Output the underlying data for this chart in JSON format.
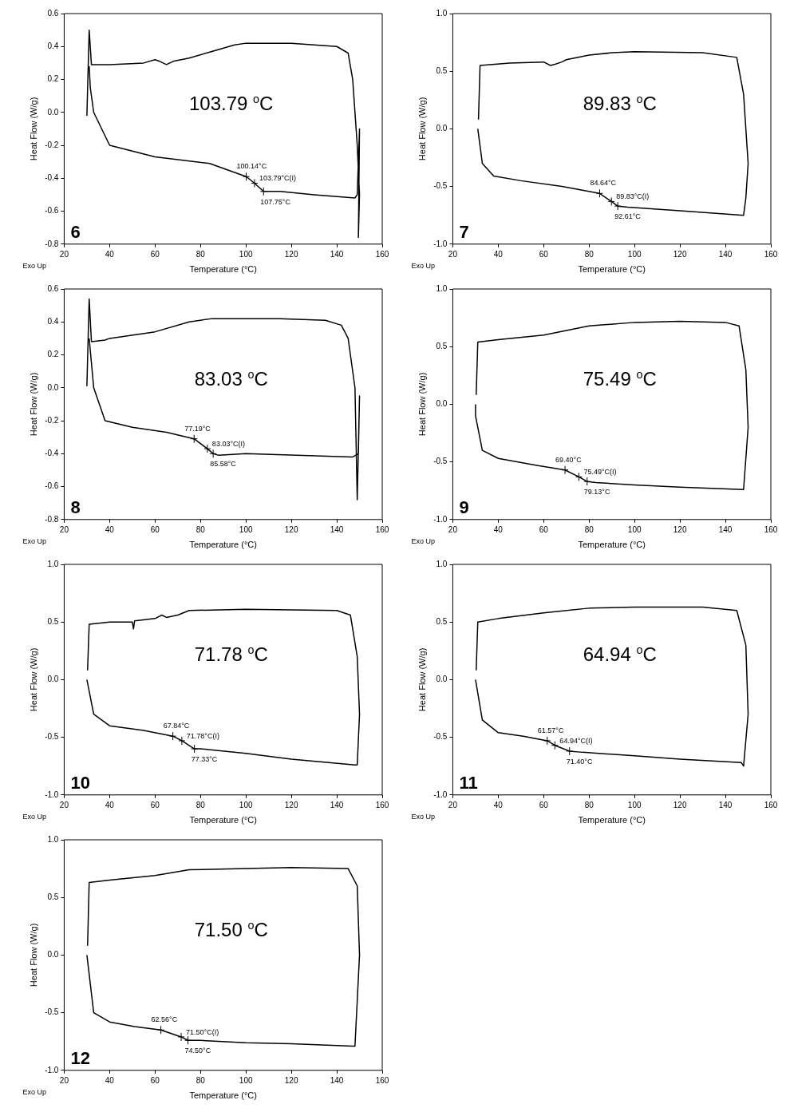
{
  "chart_data": [
    {
      "type": "line",
      "xlabel": "Temperature (°C)",
      "ylabel": "Heat Flow (W/g)",
      "xlim": [
        20,
        160
      ],
      "xticks": [
        20,
        40,
        60,
        80,
        100,
        120,
        140,
        160
      ],
      "ylim": [
        -0.8,
        0.6
      ],
      "yticks": [
        {
          "value": -0.8,
          "label": "-0.8"
        },
        {
          "value": -0.6,
          "label": "-0.6"
        },
        {
          "value": -0.4,
          "label": "-0.4"
        },
        {
          "value": -0.2,
          "label": "-0.2"
        },
        {
          "value": 0,
          "label": "0.0"
        },
        {
          "value": 0.2,
          "label": "0.2"
        },
        {
          "value": 0.4,
          "label": "0.4"
        },
        {
          "value": 0.6,
          "label": "0.6"
        }
      ],
      "grid": false,
      "marker": "none",
      "series": [
        {
          "color": "#000000",
          "x": [
            30,
            31,
            32,
            40,
            55,
            60,
            62,
            65,
            68,
            75,
            85,
            95,
            100,
            120,
            140,
            145,
            147,
            149,
            150,
            149.5,
            150,
            149,
            148,
            130,
            115,
            107.75,
            103.79,
            100.14,
            84,
            60,
            40,
            33,
            31.5,
            31
          ],
          "values": [
            -0.02,
            0.5,
            0.29,
            0.29,
            0.3,
            0.32,
            0.31,
            0.29,
            0.31,
            0.33,
            0.37,
            0.41,
            0.42,
            0.42,
            0.4,
            0.36,
            0.2,
            -0.2,
            -0.5,
            -0.76,
            -0.1,
            -0.5,
            -0.52,
            -0.5,
            -0.48,
            -0.48,
            -0.43,
            -0.39,
            -0.31,
            -0.27,
            -0.2,
            0,
            0.15,
            0.28
          ]
        }
      ],
      "annotations": [
        "103.79 $^{o}$C",
        "6",
        "Exo Up",
        {
          "text": "100.14°C",
          "x": 100.14,
          "y": -0.39
        },
        {
          "text": "103.79°C(I)",
          "x": 103.79,
          "y": -0.43
        },
        {
          "text": "107.75°C",
          "x": 107.75,
          "y": -0.48
        }
      ]
    },
    {
      "type": "line",
      "xlabel": "Temperature (°C)",
      "ylabel": "Heat Flow (W/g)",
      "xlim": [
        20,
        160
      ],
      "xticks": [
        20,
        40,
        60,
        80,
        100,
        120,
        140,
        160
      ],
      "ylim": [
        -1,
        1
      ],
      "yticks": [
        {
          "value": -1,
          "label": "-1.0"
        },
        {
          "value": -0.5,
          "label": "-0.5"
        },
        {
          "value": 0,
          "label": "0.0"
        },
        {
          "value": 0.5,
          "label": "0.5"
        },
        {
          "value": 1,
          "label": "1.0"
        }
      ],
      "grid": false,
      "marker": "none",
      "series": [
        {
          "color": "#000000",
          "x": [
            31.3,
            32,
            45,
            60,
            63,
            65,
            68,
            70,
            80,
            90,
            100,
            130,
            145,
            148,
            150,
            149,
            148,
            120,
            97,
            92.61,
            89.83,
            84.64,
            68,
            50,
            38,
            33,
            31
          ],
          "values": [
            0.08,
            0.55,
            0.57,
            0.58,
            0.55,
            0.56,
            0.58,
            0.6,
            0.64,
            0.66,
            0.67,
            0.66,
            0.62,
            0.3,
            -0.3,
            -0.6,
            -0.75,
            -0.71,
            -0.68,
            -0.67,
            -0.63,
            -0.56,
            -0.5,
            -0.45,
            -0.41,
            -0.3,
            0
          ]
        }
      ],
      "annotations": [
        "89.83 $^{o}$C",
        "7",
        "Exo Up",
        {
          "text": "84.64°C",
          "x": 84.64,
          "y": -0.56
        },
        {
          "text": "89.83°C(I)",
          "x": 89.83,
          "y": -0.63
        },
        {
          "text": "92.61°C",
          "x": 92.61,
          "y": -0.67
        }
      ]
    },
    {
      "type": "line",
      "xlabel": "Temperature (°C)",
      "ylabel": "Heat Flow (W/g)",
      "xlim": [
        20,
        160
      ],
      "xticks": [
        20,
        40,
        60,
        80,
        100,
        120,
        140,
        160
      ],
      "ylim": [
        -0.8,
        0.6
      ],
      "yticks": [
        {
          "value": -0.8,
          "label": "-0.8"
        },
        {
          "value": -0.6,
          "label": "-0.6"
        },
        {
          "value": -0.4,
          "label": "-0.4"
        },
        {
          "value": -0.2,
          "label": "-0.2"
        },
        {
          "value": 0,
          "label": "0.0"
        },
        {
          "value": 0.2,
          "label": "0.2"
        },
        {
          "value": 0.4,
          "label": "0.4"
        },
        {
          "value": 0.6,
          "label": "0.6"
        }
      ],
      "grid": false,
      "marker": "none",
      "series": [
        {
          "color": "#000000",
          "x": [
            30,
            31,
            32,
            38,
            40,
            60,
            75,
            85,
            115,
            135,
            142,
            145,
            148,
            149,
            150,
            149.5,
            147,
            100,
            88,
            85.58,
            83.03,
            77.19,
            65,
            50,
            38,
            33,
            31
          ],
          "values": [
            0.01,
            0.54,
            0.28,
            0.29,
            0.3,
            0.34,
            0.4,
            0.42,
            0.42,
            0.41,
            0.38,
            0.3,
            0,
            -0.68,
            -0.05,
            -0.4,
            -0.42,
            -0.4,
            -0.41,
            -0.4,
            -0.37,
            -0.31,
            -0.27,
            -0.24,
            -0.2,
            0,
            0.3
          ]
        }
      ],
      "annotations": [
        "83.03 $^{o}$C",
        "8",
        "Exo Up",
        {
          "text": "77.19°C",
          "x": 77.19,
          "y": -0.31
        },
        {
          "text": "83.03°C(I)",
          "x": 83.03,
          "y": -0.37
        },
        {
          "text": "85.58°C",
          "x": 85.58,
          "y": -0.4
        }
      ]
    },
    {
      "type": "line",
      "xlabel": "Temperature (°C)",
      "ylabel": "Heat Flow (W/g)",
      "xlim": [
        20,
        160
      ],
      "xticks": [
        20,
        40,
        60,
        80,
        100,
        120,
        140,
        160
      ],
      "ylim": [
        -1,
        1
      ],
      "yticks": [
        {
          "value": -1,
          "label": "-1.0"
        },
        {
          "value": -0.5,
          "label": "-0.5"
        },
        {
          "value": 0,
          "label": "0.0"
        },
        {
          "value": 0.5,
          "label": "0.5"
        },
        {
          "value": 1,
          "label": "1.0"
        }
      ],
      "grid": false,
      "marker": "none",
      "series": [
        {
          "color": "#000000",
          "x": [
            30.3,
            31,
            40,
            60,
            80,
            100,
            120,
            140,
            146,
            149,
            150,
            148,
            120,
            100,
            83,
            79.13,
            75.49,
            69.4,
            57,
            40,
            33,
            30,
            30
          ],
          "values": [
            0.08,
            0.54,
            0.56,
            0.6,
            0.68,
            0.71,
            0.72,
            0.71,
            0.68,
            0.3,
            -0.2,
            -0.74,
            -0.72,
            -0.7,
            -0.68,
            -0.67,
            -0.63,
            -0.57,
            -0.53,
            -0.47,
            -0.4,
            -0.1,
            0
          ]
        }
      ],
      "annotations": [
        "75.49 $^{o}$C",
        "9",
        "Exo Up",
        {
          "text": "69.40°C",
          "x": 69.4,
          "y": -0.57
        },
        {
          "text": "75.49°C(I)",
          "x": 75.49,
          "y": -0.63
        },
        {
          "text": "79.13°C",
          "x": 79.13,
          "y": -0.67
        }
      ]
    },
    {
      "type": "line",
      "xlabel": "Temperature (°C)",
      "ylabel": "Heat Flow (W/g)",
      "xlim": [
        20,
        160
      ],
      "xticks": [
        20,
        40,
        60,
        80,
        100,
        120,
        140,
        160
      ],
      "ylim": [
        -1,
        1
      ],
      "yticks": [
        {
          "value": -1,
          "label": "-1.0"
        },
        {
          "value": -0.5,
          "label": "-0.5"
        },
        {
          "value": 0,
          "label": "0.0"
        },
        {
          "value": 0.5,
          "label": "0.5"
        },
        {
          "value": 1,
          "label": "1.0"
        }
      ],
      "grid": false,
      "marker": "none",
      "series": [
        {
          "color": "#000000",
          "x": [
            30.3,
            31,
            40,
            50,
            50.5,
            51,
            60,
            63,
            65,
            70,
            75,
            100,
            140,
            146,
            149,
            150,
            149,
            148,
            120,
            100,
            80,
            77.33,
            71.78,
            67.84,
            55,
            40,
            33,
            30
          ],
          "values": [
            0.08,
            0.48,
            0.5,
            0.5,
            0.44,
            0.51,
            0.53,
            0.56,
            0.54,
            0.56,
            0.6,
            0.61,
            0.6,
            0.56,
            0.2,
            -0.3,
            -0.74,
            -0.74,
            -0.69,
            -0.64,
            -0.6,
            -0.6,
            -0.53,
            -0.49,
            -0.44,
            -0.4,
            -0.3,
            0
          ]
        }
      ],
      "annotations": [
        "71.78 $^{o}$C",
        "10",
        "Exo Up",
        {
          "text": "67.84°C",
          "x": 67.84,
          "y": -0.49
        },
        {
          "text": "71.78°C(I)",
          "x": 71.78,
          "y": -0.53
        },
        {
          "text": "77.33°C",
          "x": 77.33,
          "y": -0.6
        }
      ]
    },
    {
      "type": "line",
      "xlabel": "Temperature (°C)",
      "ylabel": "Heat Flow (W/g)",
      "xlim": [
        20,
        160
      ],
      "xticks": [
        20,
        40,
        60,
        80,
        100,
        120,
        140,
        160
      ],
      "ylim": [
        -1,
        1
      ],
      "yticks": [
        {
          "value": -1,
          "label": "-1.0"
        },
        {
          "value": -0.5,
          "label": "-0.5"
        },
        {
          "value": 0,
          "label": "0.0"
        },
        {
          "value": 0.5,
          "label": "0.5"
        },
        {
          "value": 1,
          "label": "1.0"
        }
      ],
      "grid": false,
      "marker": "none",
      "series": [
        {
          "color": "#000000",
          "x": [
            30.3,
            31,
            40,
            60,
            80,
            100,
            130,
            145,
            149,
            150,
            148,
            147,
            120,
            100,
            77,
            71.4,
            64.94,
            61.57,
            51,
            40,
            33,
            30
          ],
          "values": [
            0.08,
            0.5,
            0.53,
            0.58,
            0.62,
            0.63,
            0.63,
            0.6,
            0.3,
            -0.3,
            -0.75,
            -0.72,
            -0.69,
            -0.66,
            -0.63,
            -0.62,
            -0.57,
            -0.53,
            -0.49,
            -0.46,
            -0.35,
            0
          ]
        }
      ],
      "annotations": [
        "64.94 $^{o}$C",
        "11",
        "Exo Up",
        {
          "text": "61.57°C",
          "x": 61.57,
          "y": -0.53
        },
        {
          "text": "64.94°C(I)",
          "x": 64.94,
          "y": -0.57
        },
        {
          "text": "71.40°C",
          "x": 71.4,
          "y": -0.62
        }
      ]
    },
    {
      "type": "line",
      "xlabel": "Temperature (°C)",
      "ylabel": "Heat Flow (W/g)",
      "xlim": [
        20,
        160
      ],
      "xticks": [
        20,
        40,
        60,
        80,
        100,
        120,
        140,
        160
      ],
      "ylim": [
        -1,
        1
      ],
      "yticks": [
        {
          "value": -1,
          "label": "-1.0"
        },
        {
          "value": -0.5,
          "label": "-0.5"
        },
        {
          "value": 0,
          "label": "0.0"
        },
        {
          "value": 0.5,
          "label": "0.5"
        },
        {
          "value": 1,
          "label": "1.0"
        }
      ],
      "grid": false,
      "marker": "none",
      "series": [
        {
          "color": "#000000",
          "x": [
            30.3,
            31,
            40,
            60,
            75,
            100,
            120,
            145,
            149,
            150,
            148,
            147,
            120,
            100,
            80,
            74.5,
            71.5,
            62.56,
            51,
            40,
            33,
            30
          ],
          "values": [
            0.08,
            0.63,
            0.65,
            0.69,
            0.74,
            0.75,
            0.76,
            0.75,
            0.6,
            0,
            -0.79,
            -0.79,
            -0.77,
            -0.76,
            -0.74,
            -0.74,
            -0.71,
            -0.65,
            -0.62,
            -0.58,
            -0.5,
            0
          ]
        }
      ],
      "annotations": [
        "71.50 $^{o}$C",
        "12",
        "Exo Up",
        {
          "text": "62.56°C",
          "x": 62.56,
          "y": -0.65
        },
        {
          "text": "71.50°C(I)",
          "x": 71.5,
          "y": -0.71
        },
        {
          "text": "74.50°C",
          "x": 74.5,
          "y": -0.74
        }
      ]
    }
  ]
}
